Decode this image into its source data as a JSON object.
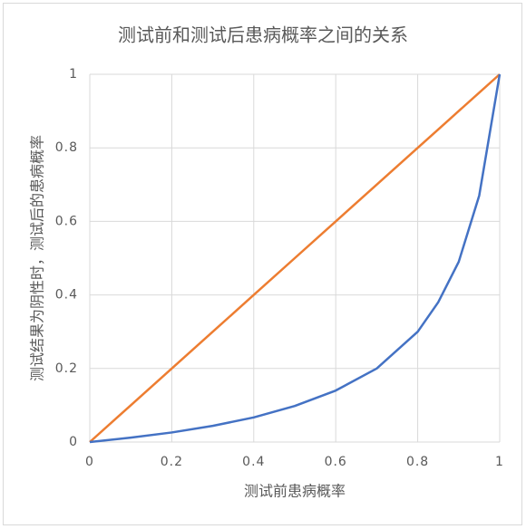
{
  "chart_data": {
    "type": "line",
    "title": "测试前和测试后患病概率之间的关系",
    "x_label": "测试前患病概率",
    "y_label": "测试结果为阴性时，测试后的患病概率",
    "x": [
      0,
      0.1,
      0.2,
      0.3,
      0.4,
      0.5,
      0.6,
      0.7,
      0.8,
      0.85,
      0.9,
      0.95,
      1
    ],
    "series": [
      {
        "color": "#4472c4",
        "values": [
          0,
          0.012,
          0.026,
          0.044,
          0.067,
          0.098,
          0.14,
          0.2,
          0.3,
          0.38,
          0.49,
          0.67,
          1
        ]
      },
      {
        "color": "#ed7d31",
        "values": [
          0,
          0.1,
          0.2,
          0.3,
          0.4,
          0.5,
          0.6,
          0.7,
          0.8,
          0.85,
          0.9,
          0.95,
          1
        ]
      }
    ],
    "xlim": [
      0,
      1
    ],
    "ylim": [
      0,
      1
    ],
    "xticks": [
      0,
      0.2,
      0.4,
      0.6,
      0.8,
      1
    ],
    "yticks": [
      0,
      0.2,
      0.4,
      0.6,
      0.8,
      1
    ],
    "grid": true
  }
}
